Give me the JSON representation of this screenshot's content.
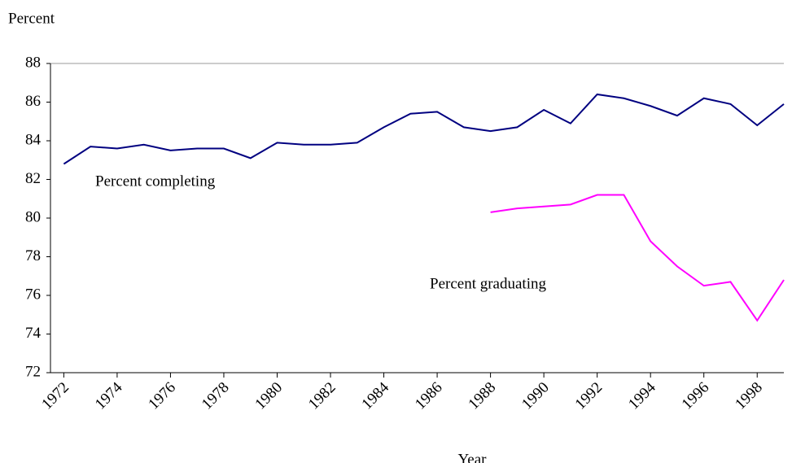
{
  "chart_data": {
    "type": "line",
    "y_label": "Percent",
    "x_label": "Year",
    "annotations": [
      "Percent completing",
      "Percent graduating"
    ],
    "x": [
      1972,
      1973,
      1974,
      1975,
      1976,
      1977,
      1978,
      1979,
      1980,
      1981,
      1982,
      1983,
      1984,
      1985,
      1986,
      1987,
      1988,
      1989,
      1990,
      1991,
      1992,
      1993,
      1994,
      1995,
      1996,
      1997,
      1998,
      1999
    ],
    "series": [
      {
        "name": "Percent completing",
        "color": "#000080",
        "values": [
          82.8,
          83.7,
          83.6,
          83.8,
          83.5,
          83.6,
          83.6,
          83.1,
          83.9,
          83.8,
          83.8,
          83.9,
          84.7,
          85.4,
          85.5,
          84.7,
          84.5,
          84.7,
          85.6,
          84.9,
          86.4,
          86.2,
          85.8,
          85.3,
          86.2,
          85.9,
          84.8,
          85.9
        ]
      },
      {
        "name": "Percent graduating",
        "color": "#ff00ff",
        "values": [
          null,
          null,
          null,
          null,
          null,
          null,
          null,
          null,
          null,
          null,
          null,
          null,
          null,
          null,
          null,
          null,
          80.3,
          80.5,
          80.6,
          80.7,
          81.2,
          81.2,
          78.8,
          77.5,
          76.5,
          76.7,
          74.7,
          76.8
        ]
      }
    ],
    "xlim": [
      1971.5,
      1999
    ],
    "xticks": [
      1972,
      1974,
      1976,
      1978,
      1980,
      1982,
      1984,
      1986,
      1988,
      1990,
      1992,
      1994,
      1996,
      1998
    ],
    "ylim": [
      72,
      88
    ],
    "yticks": [
      72,
      74,
      76,
      78,
      80,
      82,
      84,
      86,
      88
    ],
    "grid": false
  }
}
